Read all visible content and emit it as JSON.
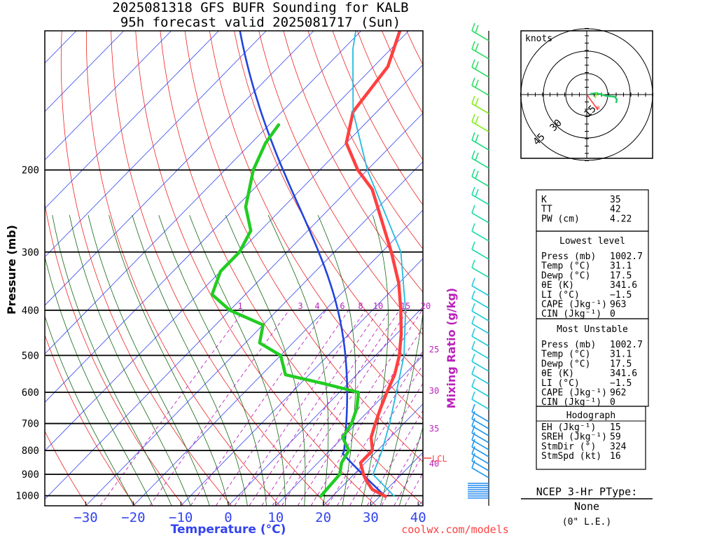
{
  "title": {
    "line1": "2025081318 GFS BUFR Sounding for KALB",
    "line2": "95h forecast valid 2025081717 (Sun)"
  },
  "colors": {
    "temp": "#ff4040",
    "dew": "#22cc22",
    "virt": "#22bbdd",
    "parcel": "#2244dd",
    "isotherm": "#3344ee",
    "dryad": "#ee2222",
    "moistad": "#116611",
    "mixr": "#bb22bb"
  },
  "chart_data": {
    "type": "line",
    "xlabel": "Temperature (°C)",
    "ylabel": "Pressure (mb)",
    "xticks": [
      "−30",
      "−20",
      "−10",
      "0",
      "10",
      "20",
      "30",
      "40"
    ],
    "pressure_ticks": [
      "200",
      "300",
      "400",
      "500",
      "600",
      "700",
      "800",
      "900",
      "1000"
    ],
    "pressure_values": [
      200,
      300,
      400,
      500,
      600,
      700,
      800,
      900,
      1000
    ],
    "mixing_ratio_label": "Mixing Ratio (g/kg)",
    "mixing_ratio_labels": [
      "1",
      "3",
      "4",
      "6",
      "8",
      "10",
      "15",
      "20",
      "25",
      "30",
      "35",
      "40"
    ],
    "lcl_label": "LCL",
    "series": [
      {
        "key": "temp",
        "points": [
          [
            1002.7,
            31.1
          ],
          [
            970,
            27
          ],
          [
            930,
            24
          ],
          [
            900,
            22
          ],
          [
            850,
            19
          ],
          [
            800,
            19
          ],
          [
            750,
            16
          ],
          [
            700,
            14
          ],
          [
            650,
            12
          ],
          [
            600,
            10
          ],
          [
            550,
            8
          ],
          [
            500,
            5
          ],
          [
            450,
            1
          ],
          [
            400,
            -4
          ],
          [
            350,
            -10
          ],
          [
            300,
            -18
          ],
          [
            250,
            -28
          ],
          [
            220,
            -35
          ],
          [
            200,
            -42
          ],
          [
            175,
            -50
          ],
          [
            150,
            -55
          ],
          [
            120,
            -57
          ],
          [
            100,
            -62
          ],
          [
            90,
            -68
          ]
        ]
      },
      {
        "key": "dew",
        "points": [
          [
            1002.7,
            17.5
          ],
          [
            900,
            17
          ],
          [
            850,
            15
          ],
          [
            800,
            14
          ],
          [
            750,
            10
          ],
          [
            700,
            9
          ],
          [
            650,
            7
          ],
          [
            600,
            4
          ],
          [
            575,
            -5
          ],
          [
            550,
            -15
          ],
          [
            500,
            -20
          ],
          [
            470,
            -27
          ],
          [
            430,
            -30
          ],
          [
            400,
            -40
          ],
          [
            370,
            -47
          ],
          [
            330,
            -50
          ],
          [
            300,
            -50
          ],
          [
            270,
            -52
          ],
          [
            240,
            -58
          ],
          [
            200,
            -64
          ],
          [
            175,
            -67
          ],
          [
            160,
            -68
          ]
        ]
      },
      {
        "key": "virt",
        "points": [
          [
            1002.7,
            33
          ],
          [
            900,
            24
          ],
          [
            800,
            21
          ],
          [
            700,
            17
          ],
          [
            600,
            12
          ],
          [
            500,
            6
          ],
          [
            400,
            -3
          ],
          [
            300,
            -16
          ],
          [
            200,
            -40
          ],
          [
            150,
            -55
          ],
          [
            110,
            -68
          ],
          [
            90,
            -75
          ]
        ]
      }
    ]
  },
  "hodograph": {
    "unit_label": "knots",
    "ring_labels": [
      "15",
      "30",
      "45"
    ]
  },
  "indices": {
    "rows": [
      {
        "k": "K",
        "v": "35"
      },
      {
        "k": "TT",
        "v": "42"
      },
      {
        "k": "PW (cm)",
        "v": "4.22"
      }
    ],
    "lowest": {
      "header": "Lowest level",
      "rows": [
        {
          "k": "Press (mb)",
          "v": "1002.7"
        },
        {
          "k": "Temp (°C)",
          "v": "31.1"
        },
        {
          "k": "Dewp (°C)",
          "v": "17.5"
        },
        {
          "k": "θE (K)",
          "v": "341.6"
        },
        {
          "k": "LI (°C)",
          "v": "−1.5"
        },
        {
          "k": "CAPE (Jkg⁻¹)",
          "v": "963"
        },
        {
          "k": "CIN (Jkg⁻¹)",
          "v": "0"
        }
      ]
    },
    "unstable": {
      "header": "Most Unstable",
      "rows": [
        {
          "k": "Press (mb)",
          "v": "1002.7"
        },
        {
          "k": "Temp (°C)",
          "v": "31.1"
        },
        {
          "k": "Dewp (°C)",
          "v": "17.5"
        },
        {
          "k": "θE (K)",
          "v": "341.6"
        },
        {
          "k": "LI (°C)",
          "v": "−1.5"
        },
        {
          "k": "CAPE (Jkg⁻¹)",
          "v": "962"
        },
        {
          "k": "CIN (Jkg⁻¹)",
          "v": "0"
        }
      ]
    },
    "hodo": {
      "header": "Hodograph",
      "rows": [
        {
          "k": "EH (Jkg⁻¹)",
          "v": "15"
        },
        {
          "k": "SREH (Jkg⁻¹)",
          "v": "59"
        },
        {
          "k": "StmDir (°)",
          "v": "324"
        },
        {
          "k": "StmSpd (kt)",
          "v": "16"
        }
      ]
    }
  },
  "ptype": {
    "title": "NCEP 3-Hr PType:",
    "value": "None",
    "sub": "(0\" L.E.)"
  },
  "credit": "coolwx.com/models"
}
